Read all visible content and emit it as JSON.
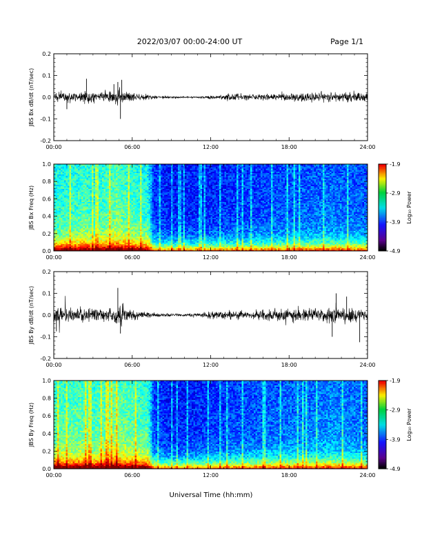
{
  "header": {
    "date_range": "2022/03/07  00:00-24:00 UT",
    "page": "Page 1/1"
  },
  "xlabel": "Universal Time (hh:mm)",
  "x_ticks": [
    "00:00",
    "06:00",
    "12:00",
    "18:00",
    "24:00"
  ],
  "chart_data": [
    {
      "type": "line",
      "id": "bx-dbdt",
      "ylabel": "JBS Bx dB/dt (nT/sec)",
      "xlim": [
        0,
        24
      ],
      "ylim": [
        -0.2,
        0.2
      ],
      "y_ticks": [
        "0.2",
        "0.1",
        "0.0",
        "-0.1",
        "-0.2"
      ],
      "envelope": {
        "t": [
          0,
          1,
          2,
          2.5,
          3,
          4,
          4.8,
          5.2,
          6,
          7,
          8,
          9,
          10,
          11,
          12,
          13,
          14,
          15,
          16,
          17,
          18,
          19,
          20,
          21,
          22,
          23,
          24
        ],
        "amp": [
          0.025,
          0.025,
          0.025,
          0.03,
          0.025,
          0.025,
          0.035,
          0.04,
          0.02,
          0.012,
          0.008,
          0.006,
          0.004,
          0.004,
          0.008,
          0.012,
          0.014,
          0.014,
          0.015,
          0.017,
          0.02,
          0.02,
          0.022,
          0.022,
          0.022,
          0.022,
          0.02
        ]
      },
      "spikes": [
        {
          "t": 2.5,
          "y": 0.085
        },
        {
          "t": 4.9,
          "y": 0.07
        },
        {
          "t": 5.2,
          "y": 0.08
        },
        {
          "t": 5.1,
          "y": -0.1
        },
        {
          "t": 1.0,
          "y": -0.055
        },
        {
          "t": 4.6,
          "y": 0.06
        }
      ]
    },
    {
      "type": "heatmap",
      "id": "bx-spectrogram",
      "ylabel": "JBS Bx Freq (Hz)",
      "xlim": [
        0,
        24
      ],
      "ylim": [
        0.0,
        1.0
      ],
      "y_ticks": [
        "1.0",
        "0.8",
        "0.6",
        "0.4",
        "0.2",
        "0.0"
      ],
      "colorbar": {
        "label": "Log₁₀ Power",
        "min": -4.9,
        "max": -1.9,
        "ticks": [
          "-1.9",
          "-2.9",
          "-3.9",
          "-4.9"
        ]
      },
      "activity": {
        "t": [
          0,
          2,
          2.4,
          3,
          4.8,
          5.2,
          7.2,
          7.6,
          9,
          12,
          15,
          18,
          20,
          21.5,
          24
        ],
        "level": [
          0.55,
          0.6,
          0.65,
          0.55,
          0.7,
          0.65,
          0.55,
          0.2,
          0.12,
          0.15,
          0.2,
          0.25,
          0.28,
          0.3,
          0.25
        ]
      }
    },
    {
      "type": "line",
      "id": "by-dbdt",
      "ylabel": "JBS By dB/dt (nT/sec)",
      "xlim": [
        0,
        24
      ],
      "ylim": [
        -0.2,
        0.2
      ],
      "y_ticks": [
        "0.2",
        "0.1",
        "0.0",
        "-0.1",
        "-0.2"
      ],
      "envelope": {
        "t": [
          0,
          1,
          2,
          3,
          4,
          4.8,
          5.2,
          6,
          7,
          8,
          9,
          10,
          11,
          12,
          13,
          14,
          15,
          16,
          17,
          18,
          19,
          20,
          21,
          22,
          23,
          24
        ],
        "amp": [
          0.035,
          0.035,
          0.03,
          0.03,
          0.035,
          0.05,
          0.05,
          0.025,
          0.015,
          0.01,
          0.006,
          0.006,
          0.01,
          0.018,
          0.022,
          0.022,
          0.02,
          0.025,
          0.028,
          0.03,
          0.03,
          0.032,
          0.035,
          0.035,
          0.032,
          0.03
        ]
      },
      "spikes": [
        {
          "t": 4.9,
          "y": 0.125
        },
        {
          "t": 5.1,
          "y": -0.085
        },
        {
          "t": 21.3,
          "y": -0.1
        },
        {
          "t": 21.6,
          "y": 0.1
        },
        {
          "t": 23.4,
          "y": -0.125
        },
        {
          "t": 0.2,
          "y": -0.075
        },
        {
          "t": 22.4,
          "y": 0.085
        }
      ]
    },
    {
      "type": "heatmap",
      "id": "by-spectrogram",
      "ylabel": "JBS By Freq (Hz)",
      "xlim": [
        0,
        24
      ],
      "ylim": [
        0.0,
        1.0
      ],
      "y_ticks": [
        "1.0",
        "0.8",
        "0.6",
        "0.4",
        "0.2",
        "0.0"
      ],
      "colorbar": {
        "label": "Log₁₀ Power",
        "min": -4.9,
        "max": -1.9,
        "ticks": [
          "-1.9",
          "-2.9",
          "-3.9",
          "-4.9"
        ]
      },
      "activity": {
        "t": [
          0,
          2,
          2.4,
          3,
          4.8,
          5.2,
          7.2,
          7.6,
          9,
          12,
          15,
          18,
          20,
          21.5,
          24
        ],
        "level": [
          0.65,
          0.65,
          0.7,
          0.62,
          0.75,
          0.7,
          0.6,
          0.22,
          0.12,
          0.18,
          0.25,
          0.3,
          0.32,
          0.36,
          0.28
        ]
      }
    }
  ]
}
